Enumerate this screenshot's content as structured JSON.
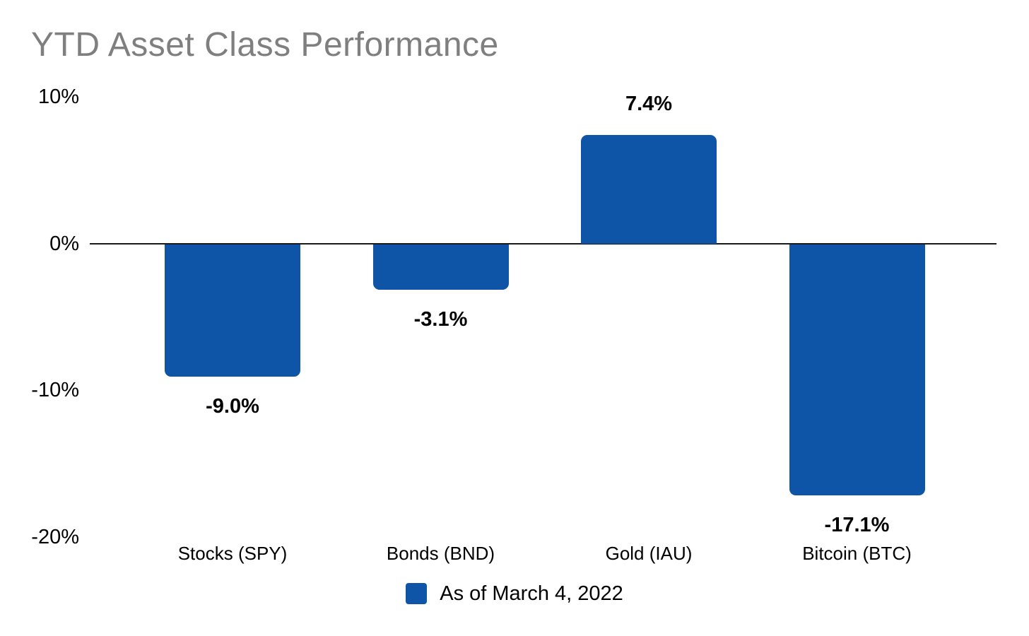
{
  "title": "YTD Asset Class Performance",
  "legend": {
    "label": "As of March 4, 2022"
  },
  "colors": {
    "bar": "#0e55a8",
    "title_text": "#7f7f7f",
    "axis_line": "#1a1a1a",
    "label_text": "#000000"
  },
  "chart_data": {
    "type": "bar",
    "title": "YTD Asset Class Performance",
    "categories": [
      "Stocks (SPY)",
      "Bonds (BND)",
      "Gold (IAU)",
      "Bitcoin (BTC)"
    ],
    "values": [
      -9.0,
      -3.1,
      7.4,
      -17.1
    ],
    "value_labels": [
      "-9.0%",
      "-3.1%",
      "7.4%",
      "-17.1%"
    ],
    "series": [
      {
        "name": "As of March 4, 2022",
        "values": [
          -9.0,
          -3.1,
          7.4,
          -17.1
        ]
      }
    ],
    "xlabel": "",
    "ylabel": "",
    "ylim": [
      -20,
      10
    ],
    "yticks": [
      10,
      0,
      -10,
      -20
    ],
    "ytick_labels": [
      "10%",
      "0%",
      "-10%",
      "-20%"
    ],
    "grid": false,
    "legend_position": "bottom"
  }
}
